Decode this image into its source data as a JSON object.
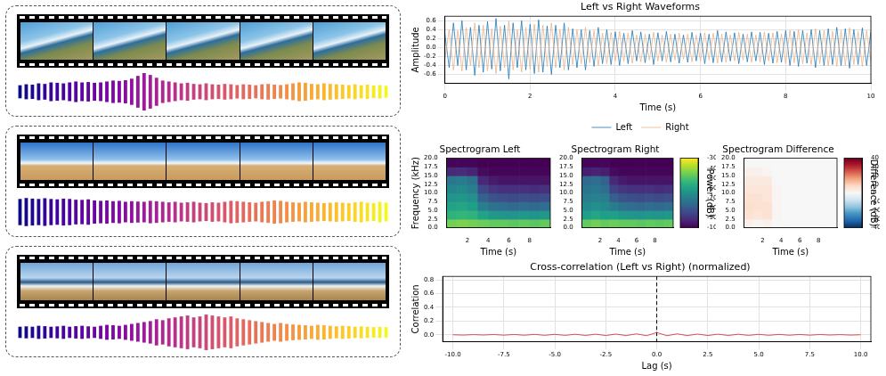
{
  "chart_data": [
    {
      "type": "bar",
      "ylim": [
        -1,
        1
      ],
      "tick_labels": false,
      "values": [
        0.35,
        0.4,
        0.38,
        0.45,
        0.42,
        0.5,
        0.48,
        0.45,
        0.5,
        0.55,
        0.5,
        0.52,
        0.48,
        0.5,
        0.55,
        0.6,
        0.58,
        0.62,
        0.7,
        0.85,
        1.0,
        0.9,
        0.75,
        0.6,
        0.55,
        0.5,
        0.45,
        0.48,
        0.42,
        0.4,
        0.45,
        0.4,
        0.38,
        0.42,
        0.4,
        0.36,
        0.4,
        0.38,
        0.35,
        0.4,
        0.42,
        0.38,
        0.36,
        0.4,
        0.45,
        0.5,
        0.48,
        0.42,
        0.4,
        0.45,
        0.42,
        0.4,
        0.38,
        0.36,
        0.4,
        0.35,
        0.38,
        0.34,
        0.36,
        0.32
      ]
    },
    {
      "type": "bar",
      "ylim": [
        -1,
        1
      ],
      "tick_labels": false,
      "values": [
        0.7,
        0.75,
        0.72,
        0.7,
        0.74,
        0.7,
        0.68,
        0.72,
        0.7,
        0.66,
        0.65,
        0.68,
        0.62,
        0.6,
        0.62,
        0.58,
        0.6,
        0.55,
        0.58,
        0.56,
        0.55,
        0.6,
        0.58,
        0.55,
        0.52,
        0.55,
        0.5,
        0.52,
        0.55,
        0.5,
        0.48,
        0.52,
        0.5,
        0.55,
        0.6,
        0.58,
        0.55,
        0.52,
        0.5,
        0.55,
        0.58,
        0.62,
        0.6,
        0.55,
        0.52,
        0.5,
        0.55,
        0.52,
        0.5,
        0.48,
        0.5,
        0.52,
        0.5,
        0.48,
        0.52,
        0.55,
        0.5,
        0.48,
        0.55,
        0.5
      ]
    },
    {
      "type": "bar",
      "ylim": [
        -1,
        1
      ],
      "tick_labels": false,
      "values": [
        0.3,
        0.32,
        0.3,
        0.35,
        0.33,
        0.3,
        0.32,
        0.35,
        0.3,
        0.33,
        0.35,
        0.32,
        0.3,
        0.35,
        0.4,
        0.38,
        0.35,
        0.4,
        0.45,
        0.5,
        0.55,
        0.6,
        0.7,
        0.65,
        0.75,
        0.8,
        0.85,
        0.9,
        0.8,
        0.85,
        0.95,
        0.9,
        0.85,
        0.8,
        0.85,
        0.75,
        0.7,
        0.65,
        0.6,
        0.55,
        0.5,
        0.45,
        0.5,
        0.45,
        0.42,
        0.4,
        0.38,
        0.35,
        0.4,
        0.38,
        0.35,
        0.32,
        0.35,
        0.33,
        0.3,
        0.32,
        0.3,
        0.28,
        0.3,
        0.28
      ]
    },
    {
      "type": "line",
      "title": "Left vs Right Waveforms",
      "x_label": "Time (s)",
      "y_label": "Amplitude",
      "x": [
        0,
        0.1,
        0.2,
        0.3,
        0.4,
        0.5,
        0.6,
        0.7,
        0.8,
        0.9,
        1,
        1.1,
        1.2,
        1.3,
        1.4,
        1.5,
        1.6,
        1.7,
        1.8,
        1.9,
        2,
        2.1,
        2.2,
        2.3,
        2.4,
        2.5,
        2.6,
        2.7,
        2.8,
        2.9,
        3,
        3.1,
        3.2,
        3.3,
        3.4,
        3.5,
        3.6,
        3.7,
        3.8,
        3.9,
        4,
        4.1,
        4.2,
        4.3,
        4.4,
        4.5,
        4.6,
        4.7,
        4.8,
        4.9,
        5,
        5.1,
        5.2,
        5.3,
        5.4,
        5.5,
        5.6,
        5.7,
        5.8,
        5.9,
        6,
        6.1,
        6.2,
        6.3,
        6.4,
        6.5,
        6.6,
        6.7,
        6.8,
        6.9,
        7,
        7.1,
        7.2,
        7.3,
        7.4,
        7.5,
        7.6,
        7.7,
        7.8,
        7.9,
        8,
        8.1,
        8.2,
        8.3,
        8.4,
        8.5,
        8.6,
        8.7,
        8.8,
        8.9,
        9,
        9.1,
        9.2,
        9.3,
        9.4,
        9.5,
        9.6,
        9.7,
        9.8,
        9.9,
        10
      ],
      "series": [
        {
          "name": "Left",
          "color": "#1f77b4",
          "values": [
            0.3,
            -0.45,
            0.55,
            -0.4,
            0.6,
            -0.5,
            0.45,
            -0.62,
            0.5,
            -0.55,
            0.58,
            -0.48,
            0.65,
            -0.52,
            0.5,
            -0.7,
            0.55,
            -0.45,
            0.6,
            -0.5,
            0.52,
            -0.58,
            0.62,
            -0.55,
            0.48,
            -0.6,
            0.5,
            -0.45,
            0.55,
            -0.5,
            0.42,
            -0.45,
            0.4,
            -0.5,
            0.38,
            -0.42,
            0.45,
            -0.36,
            0.4,
            -0.38,
            0.35,
            -0.4,
            0.32,
            -0.36,
            0.38,
            -0.3,
            0.35,
            -0.34,
            0.3,
            -0.38,
            0.33,
            -0.3,
            0.36,
            -0.32,
            0.3,
            -0.35,
            0.28,
            -0.33,
            0.34,
            -0.3,
            0.32,
            -0.36,
            0.3,
            -0.34,
            0.38,
            -0.32,
            0.35,
            -0.3,
            0.33,
            -0.36,
            0.3,
            -0.32,
            0.35,
            -0.3,
            0.34,
            -0.38,
            0.32,
            -0.35,
            0.36,
            -0.33,
            0.38,
            -0.4,
            0.36,
            -0.42,
            0.38,
            -0.35,
            0.4,
            -0.45,
            0.38,
            -0.4,
            0.42,
            -0.38,
            0.45,
            -0.4,
            0.42,
            -0.46,
            0.4,
            -0.38,
            0.44,
            -0.4,
            0.35
          ]
        },
        {
          "name": "Right",
          "color": "#e9b38a",
          "values": [
            -0.25,
            0.4,
            -0.5,
            0.38,
            -0.52,
            0.45,
            -0.4,
            0.55,
            -0.45,
            0.5,
            -0.52,
            0.42,
            -0.58,
            0.48,
            -0.45,
            0.6,
            -0.5,
            0.4,
            -0.55,
            0.45,
            -0.48,
            0.52,
            -0.55,
            0.5,
            -0.42,
            0.55,
            -0.45,
            0.4,
            -0.5,
            0.45,
            -0.38,
            0.4,
            -0.36,
            0.45,
            -0.34,
            0.38,
            -0.4,
            0.32,
            -0.36,
            0.34,
            -0.3,
            0.36,
            -0.3,
            0.33,
            -0.35,
            0.28,
            -0.32,
            0.3,
            -0.28,
            0.34,
            -0.3,
            0.28,
            -0.33,
            0.3,
            -0.28,
            0.32,
            -0.26,
            0.3,
            -0.32,
            0.28,
            -0.3,
            0.33,
            -0.28,
            0.32,
            -0.35,
            0.3,
            -0.33,
            0.28,
            -0.3,
            0.34,
            -0.28,
            0.3,
            -0.33,
            0.28,
            -0.32,
            0.35,
            -0.3,
            0.33,
            -0.34,
            0.3,
            -0.36,
            0.38,
            -0.34,
            0.4,
            -0.36,
            0.33,
            -0.38,
            0.42,
            -0.36,
            0.38,
            -0.4,
            0.36,
            -0.42,
            0.38,
            -0.4,
            0.44,
            -0.38,
            0.36,
            -0.42,
            0.38,
            -0.33
          ]
        }
      ],
      "xlim": [
        0,
        10
      ],
      "xticks": [
        0,
        2,
        4,
        6,
        8,
        10
      ],
      "ylim": [
        -0.8,
        0.7
      ],
      "yticks": [
        -0.6,
        -0.4,
        -0.2,
        {
          "value": 0,
          "label": "0.0"
        },
        0.2,
        0.4,
        0.6
      ],
      "grid": true,
      "legend": "bottom"
    },
    {
      "type": "heatmap",
      "title": "Spectrogram Left",
      "x_label": "Time (s)",
      "y_label": "Frequency (kHz)",
      "xlim": [
        0,
        10
      ],
      "xticks": [
        2,
        4,
        6,
        8
      ],
      "ylim": [
        0,
        20
      ],
      "yticks": [
        {
          "value": 0,
          "label": "0.0"
        },
        2.5,
        {
          "value": 5,
          "label": "5.0"
        },
        7.5,
        {
          "value": 10,
          "label": "10.0"
        },
        12.5,
        {
          "value": 15,
          "label": "15.0"
        },
        17.5,
        {
          "value": 20,
          "label": "20.0"
        }
      ],
      "cells": [
        [
          -45,
          -44,
          -45,
          -46,
          -47,
          -47,
          -48,
          -47,
          -48,
          -47
        ],
        [
          -55,
          -54,
          -55,
          -60,
          -63,
          -64,
          -64,
          -63,
          -64,
          -63
        ],
        [
          -60,
          -59,
          -61,
          -70,
          -74,
          -75,
          -76,
          -75,
          -76,
          -75
        ],
        [
          -64,
          -63,
          -65,
          -78,
          -82,
          -83,
          -84,
          -83,
          -84,
          -83
        ],
        [
          -68,
          -67,
          -70,
          -85,
          -89,
          -90,
          -90,
          -90,
          -91,
          -90
        ],
        [
          -72,
          -71,
          -74,
          -92,
          -95,
          -96,
          -96,
          -96,
          -96,
          -96
        ],
        [
          -92,
          -91,
          -93,
          -98,
          -99,
          -99,
          -99,
          -99,
          -99,
          -99
        ],
        [
          -99,
          -99,
          -99,
          -100,
          -100,
          -100,
          -100,
          -100,
          -100,
          -100
        ]
      ]
    },
    {
      "type": "heatmap",
      "title": "Spectrogram Right",
      "x_label": "Time (s)",
      "xlim": [
        0,
        10
      ],
      "xticks": [
        2,
        4,
        6,
        8
      ],
      "ylim": [
        0,
        20
      ],
      "yticks": [
        {
          "value": 0,
          "label": "0.0"
        },
        2.5,
        {
          "value": 5,
          "label": "5.0"
        },
        7.5,
        {
          "value": 10,
          "label": "10.0"
        },
        12.5,
        {
          "value": 15,
          "label": "15.0"
        },
        17.5,
        {
          "value": 20,
          "label": "20.0"
        }
      ],
      "cells": [
        [
          -47,
          -45,
          -47,
          -46,
          -47,
          -47,
          -48,
          -47,
          -48,
          -47
        ],
        [
          -61,
          -59,
          -61,
          -61,
          -63,
          -64,
          -64,
          -63,
          -64,
          -63
        ],
        [
          -67,
          -65,
          -67,
          -71,
          -74,
          -75,
          -76,
          -75,
          -76,
          -75
        ],
        [
          -70,
          -69,
          -70,
          -79,
          -82,
          -83,
          -84,
          -83,
          -84,
          -83
        ],
        [
          -73,
          -72,
          -75,
          -86,
          -89,
          -90,
          -90,
          -90,
          -91,
          -90
        ],
        [
          -76,
          -75,
          -78,
          -92,
          -95,
          -96,
          -96,
          -96,
          -96,
          -96
        ],
        [
          -94,
          -93,
          -94,
          -98,
          -99,
          -99,
          -99,
          -99,
          -99,
          -99
        ],
        [
          -99,
          -99,
          -99,
          -100,
          -100,
          -100,
          -100,
          -100,
          -100,
          -100
        ]
      ],
      "colorbar": {
        "range": [
          -100,
          -30
        ],
        "ticks": [
          -100,
          -90,
          -80,
          -70,
          -60,
          -50,
          -40,
          -30
        ],
        "label": "Power (dB)"
      }
    },
    {
      "type": "heatmap",
      "title": "Spectrogram Difference",
      "x_label": "Time (s)",
      "xlim": [
        0,
        10
      ],
      "xticks": [
        2,
        4,
        6,
        8
      ],
      "ylim": [
        0,
        20
      ],
      "yticks": [
        {
          "value": 0,
          "label": "0.0"
        },
        2.5,
        {
          "value": 5,
          "label": "5.0"
        },
        7.5,
        {
          "value": 10,
          "label": "10.0"
        },
        12.5,
        {
          "value": 15,
          "label": "15.0"
        },
        17.5,
        {
          "value": 20,
          "label": "20.0"
        }
      ],
      "cells": [
        [
          2,
          1,
          2,
          0,
          0,
          0,
          0,
          0,
          0,
          0
        ],
        [
          6,
          5,
          6,
          1,
          0,
          0,
          0,
          0,
          0,
          0
        ],
        [
          7,
          6,
          6,
          1,
          0,
          0,
          0,
          0,
          0,
          0
        ],
        [
          6,
          6,
          5,
          1,
          0,
          0,
          0,
          0,
          0,
          0
        ],
        [
          5,
          5,
          5,
          1,
          0,
          0,
          0,
          0,
          0,
          0
        ],
        [
          4,
          4,
          4,
          0,
          0,
          0,
          0,
          0,
          0,
          0
        ],
        [
          2,
          2,
          1,
          0,
          0,
          0,
          0,
          0,
          0,
          0
        ],
        [
          0,
          0,
          0,
          0,
          0,
          0,
          0,
          0,
          0,
          0
        ]
      ],
      "colorbar": {
        "range": [
          -40,
          40
        ],
        "ticks": [
          -40,
          -30,
          -20,
          -10,
          0,
          10,
          20,
          30,
          40
        ],
        "label": "Difference (dB)"
      }
    },
    {
      "type": "line",
      "title": "Cross-correlation (Left vs Right) (normalized)",
      "x_label": "Lag (s)",
      "y_label": "Correlation",
      "x": [
        -10,
        -9.5,
        -9,
        -8.5,
        -8,
        -7.5,
        -7,
        -6.5,
        -6,
        -5.5,
        -5,
        -4.5,
        -4,
        -3.5,
        -3,
        -2.5,
        -2,
        -1.5,
        -1,
        -0.5,
        0,
        0.5,
        1,
        1.5,
        2,
        2.5,
        3,
        3.5,
        4,
        4.5,
        5,
        5.5,
        6,
        6.5,
        7,
        7.5,
        8,
        8.5,
        9,
        9.5,
        10
      ],
      "values": [
        0.002,
        -0.003,
        0.004,
        -0.002,
        0.005,
        -0.004,
        0.006,
        -0.005,
        0.007,
        -0.006,
        0.008,
        -0.007,
        0.009,
        -0.008,
        0.01,
        -0.009,
        0.012,
        -0.01,
        0.015,
        -0.012,
        0.035,
        -0.012,
        0.015,
        -0.01,
        0.012,
        -0.009,
        0.01,
        -0.008,
        0.009,
        -0.007,
        0.008,
        -0.006,
        0.007,
        -0.005,
        0.006,
        -0.004,
        0.005,
        -0.002,
        0.004,
        -0.003,
        0.002
      ],
      "color": "#d62728",
      "reference_line": 0,
      "xlim": [
        -10.5,
        10.5
      ],
      "xticks": [
        {
          "value": -10,
          "label": "-10.0"
        },
        -7.5,
        {
          "value": -5,
          "label": "-5.0"
        },
        -2.5,
        {
          "value": 0,
          "label": "0.0"
        },
        2.5,
        {
          "value": 5,
          "label": "5.0"
        },
        7.5,
        {
          "value": 10,
          "label": "10.0"
        }
      ],
      "ylim": [
        -0.1,
        0.85
      ],
      "yticks": [
        {
          "value": 0,
          "label": "0.0"
        },
        0.2,
        0.4,
        0.6,
        0.8
      ],
      "grid": true
    }
  ]
}
